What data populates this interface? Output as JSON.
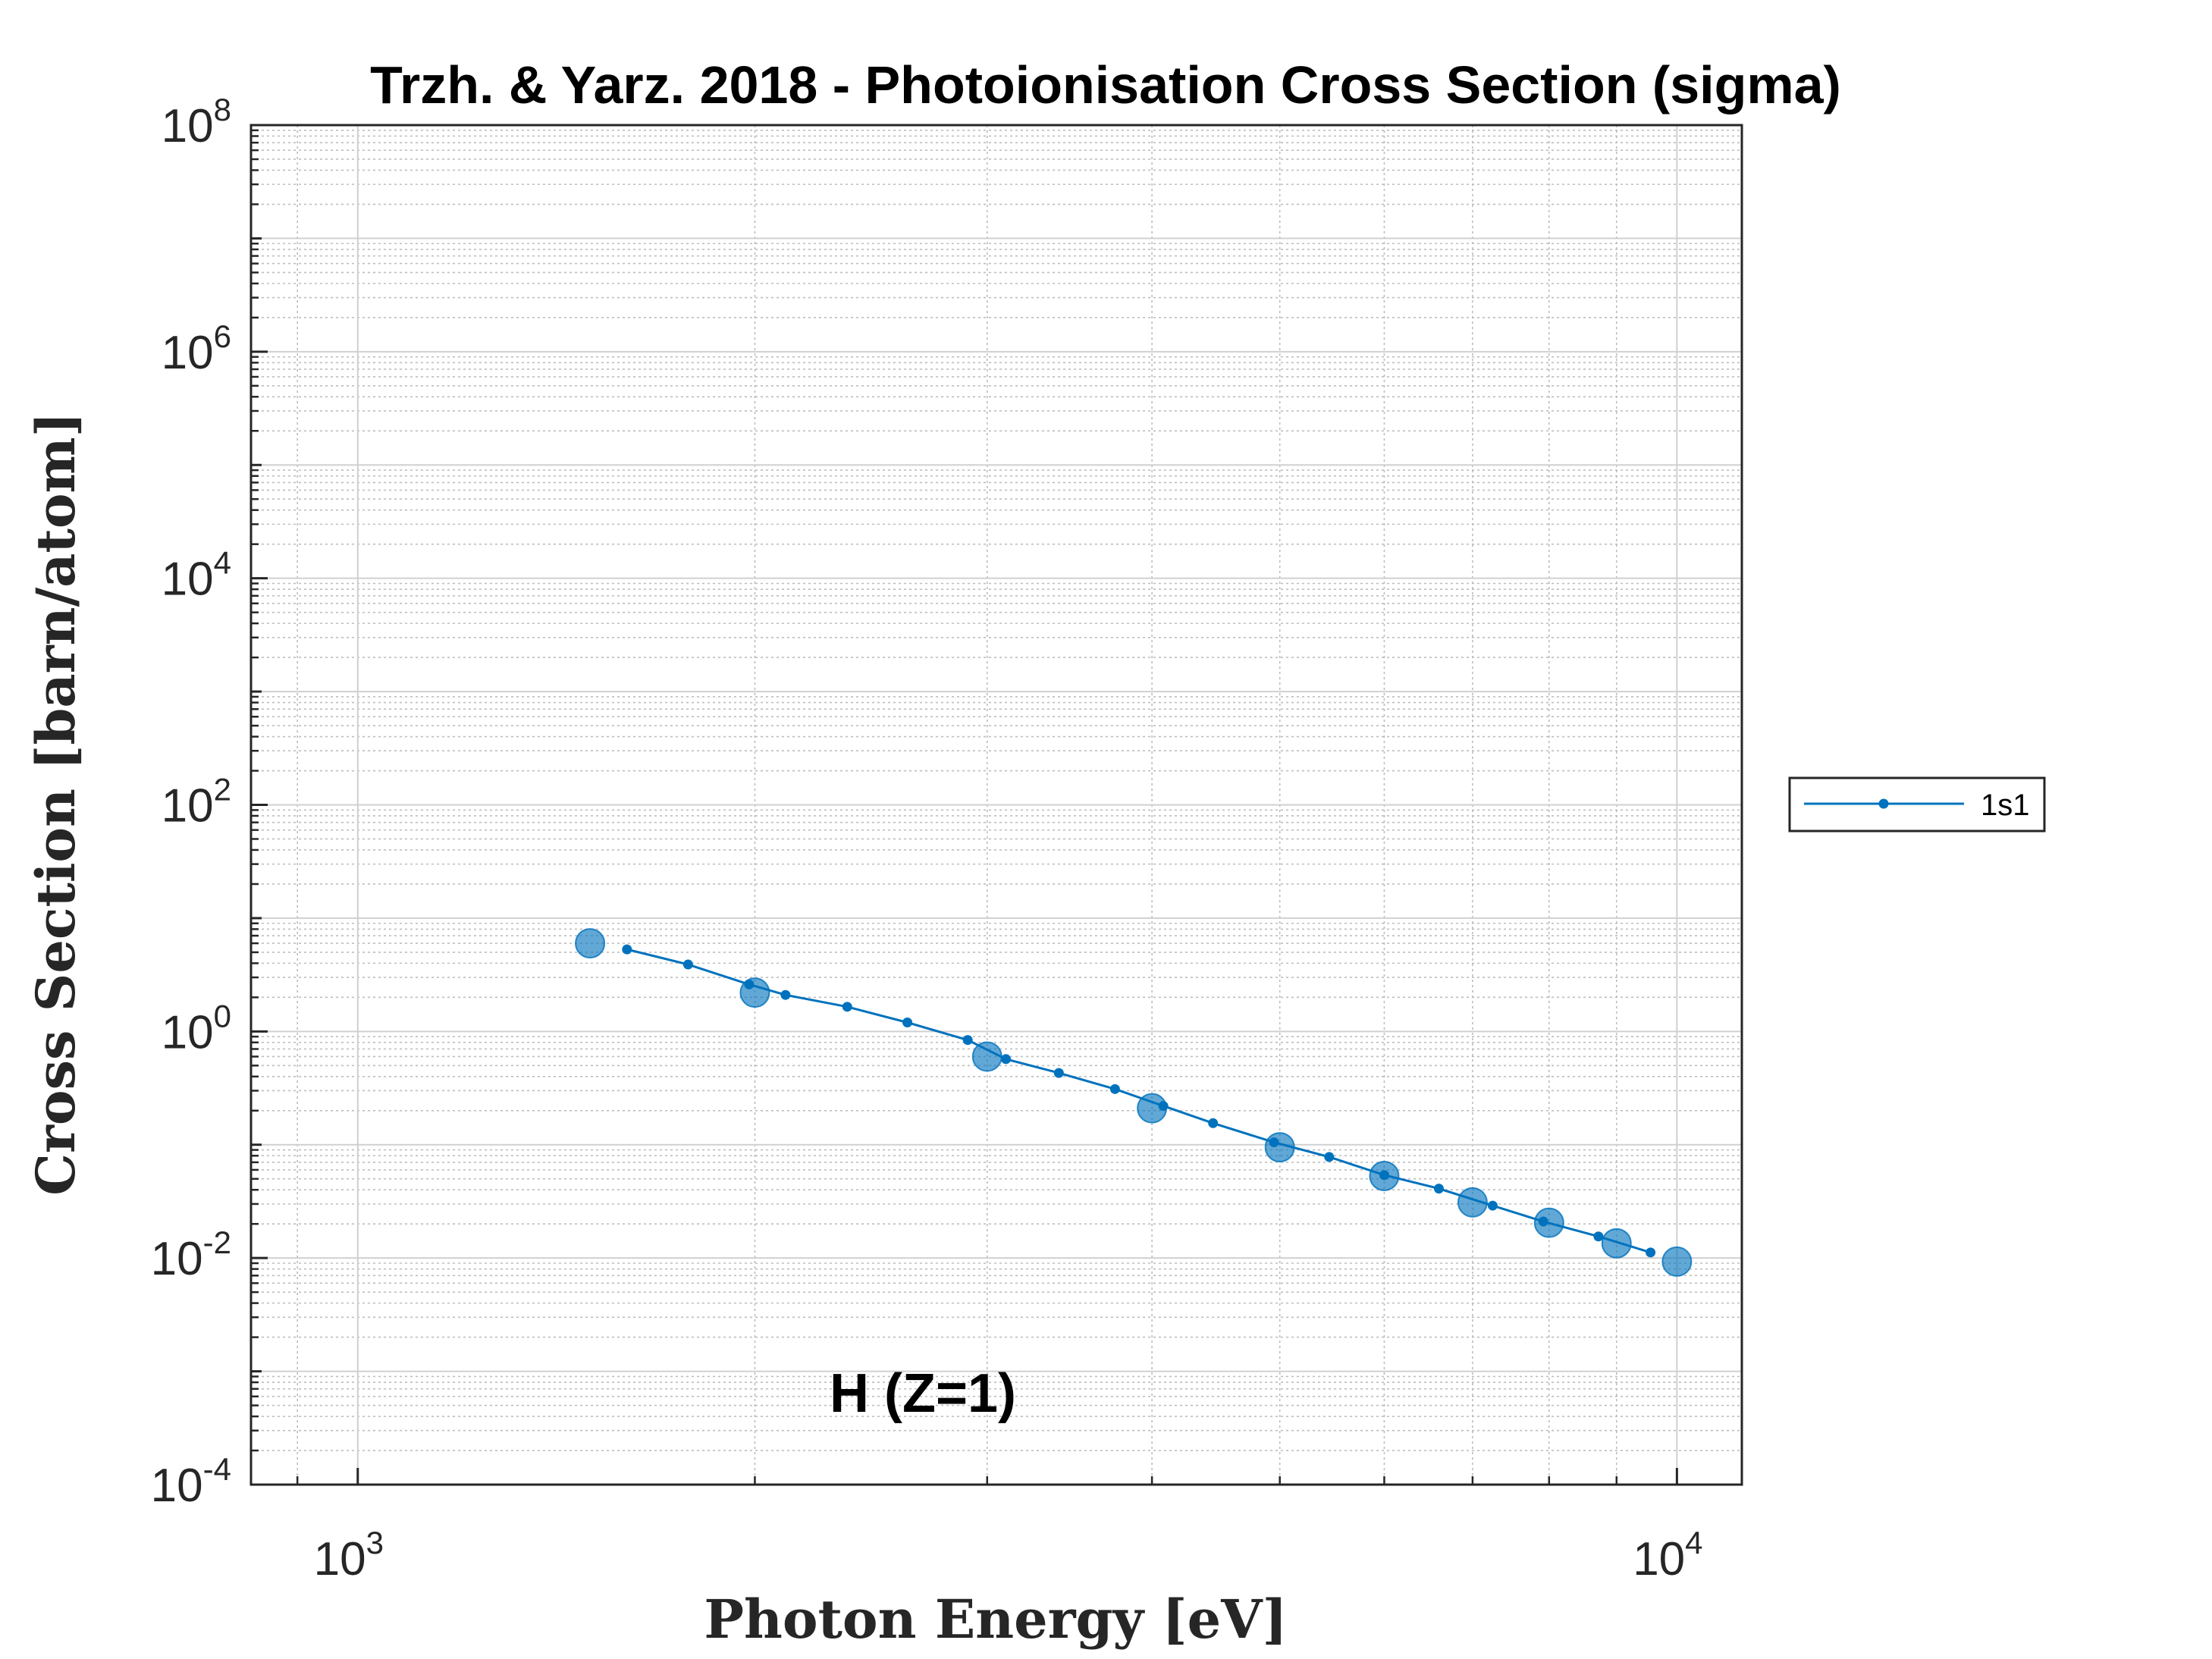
{
  "chart_data": {
    "type": "scatter",
    "title": "Trzh. & Yarz. 2018 - Photoionisation Cross Section (sigma)",
    "xlabel": "Photon Energy [eV]",
    "ylabel": "Cross Section [barn/atom]",
    "xscale": "log",
    "yscale": "log",
    "xlim": [
      830,
      11200
    ],
    "ylim": [
      0.0001,
      100000000
    ],
    "x_ticks": [
      {
        "value": 1000,
        "base": "10",
        "exp": "3"
      },
      {
        "value": 10000,
        "base": "10",
        "exp": "4"
      }
    ],
    "y_ticks": [
      {
        "value": 0.0001,
        "base": "10",
        "exp": "-4"
      },
      {
        "value": 0.01,
        "base": "10",
        "exp": "-2"
      },
      {
        "value": 1,
        "base": "10",
        "exp": "0"
      },
      {
        "value": 100,
        "base": "10",
        "exp": "2"
      },
      {
        "value": 10000,
        "base": "10",
        "exp": "4"
      },
      {
        "value": 1000000,
        "base": "10",
        "exp": "6"
      },
      {
        "value": 100000000,
        "base": "10",
        "exp": "8"
      }
    ],
    "grid": true,
    "legend_position": "outside-right",
    "annotation": "H (Z=1)",
    "series": [
      {
        "name": "1s1",
        "style": "line-with-dots",
        "color": "#0072BD",
        "x": [
          1600,
          1780,
          1980,
          2110,
          2350,
          2610,
          2900,
          3100,
          3400,
          3750,
          4080,
          4450,
          4950,
          5450,
          6000,
          6600,
          7250,
          7920,
          8720,
          9550
        ],
        "y": [
          5.3,
          3.9,
          2.6,
          2.1,
          1.65,
          1.2,
          0.84,
          0.57,
          0.43,
          0.31,
          0.22,
          0.155,
          0.105,
          0.078,
          0.054,
          0.041,
          0.029,
          0.021,
          0.0155,
          0.0112
        ]
      },
      {
        "name": "",
        "style": "large-markers",
        "color": "#0072BD",
        "x": [
          1500,
          2000,
          3000,
          4000,
          5000,
          6000,
          7000,
          8000,
          9000,
          10000
        ],
        "y": [
          6.0,
          2.2,
          0.6,
          0.21,
          0.095,
          0.053,
          0.031,
          0.0205,
          0.0135,
          0.0093
        ]
      }
    ]
  }
}
